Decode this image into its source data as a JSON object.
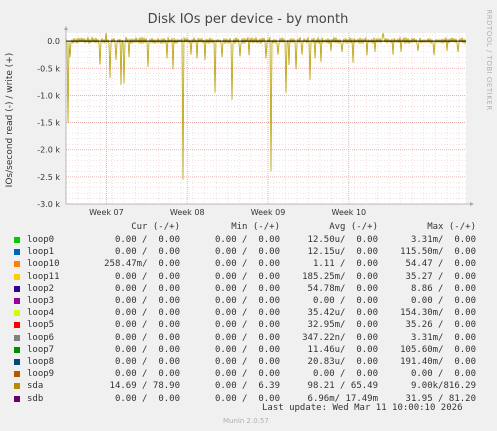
{
  "colors": {
    "background": "#f0f0f0",
    "plot_bg": "#ffffff",
    "grid_major": "#e6a0a0",
    "grid_minor": "#eec8c8",
    "zero_line": "#000000",
    "series_sda": "#b8a000"
  },
  "side_label": "RRDTOOL / TOBI OETIKER",
  "chart_data": {
    "type": "line",
    "title": "Disk IOs per device - by month",
    "ylabel": "IOs/second read (-) / write (+)",
    "ylim": [
      -3000,
      150
    ],
    "yticks": [
      {
        "value": 0,
        "label": "0.0"
      },
      {
        "value": -500,
        "label": "-0.5 k"
      },
      {
        "value": -1000,
        "label": "-1.0 k"
      },
      {
        "value": -1500,
        "label": "-1.5 k"
      },
      {
        "value": -2000,
        "label": "-2.0 k"
      },
      {
        "value": -2500,
        "label": "-2.5 k"
      },
      {
        "value": -3000,
        "label": "-3.0 k"
      }
    ],
    "xlim_weeks": [
      6.0,
      10.95
    ],
    "xticks": [
      {
        "value": 6.5,
        "label": "Week 07"
      },
      {
        "value": 7.5,
        "label": "Week 08"
      },
      {
        "value": 8.5,
        "label": "Week 09"
      },
      {
        "value": 9.5,
        "label": "Week 10"
      }
    ],
    "grid": true,
    "series": [
      {
        "name": "sda",
        "color": "#b8a000",
        "read_spikes": [
          {
            "x": 6.02,
            "y": -1500
          },
          {
            "x": 6.05,
            "y": -300
          },
          {
            "x": 6.42,
            "y": -430
          },
          {
            "x": 6.55,
            "y": -680
          },
          {
            "x": 6.62,
            "y": -350
          },
          {
            "x": 6.68,
            "y": -800
          },
          {
            "x": 6.72,
            "y": -780
          },
          {
            "x": 6.78,
            "y": -300
          },
          {
            "x": 7.02,
            "y": -470
          },
          {
            "x": 7.25,
            "y": -320
          },
          {
            "x": 7.33,
            "y": -520
          },
          {
            "x": 7.45,
            "y": -2550
          },
          {
            "x": 7.55,
            "y": -250
          },
          {
            "x": 7.62,
            "y": -320
          },
          {
            "x": 7.72,
            "y": -350
          },
          {
            "x": 7.85,
            "y": -950
          },
          {
            "x": 7.93,
            "y": -300
          },
          {
            "x": 8.05,
            "y": -1080
          },
          {
            "x": 8.15,
            "y": -280
          },
          {
            "x": 8.27,
            "y": -260
          },
          {
            "x": 8.48,
            "y": -320
          },
          {
            "x": 8.54,
            "y": -2400
          },
          {
            "x": 8.62,
            "y": -250
          },
          {
            "x": 8.72,
            "y": -950
          },
          {
            "x": 8.76,
            "y": -440
          },
          {
            "x": 8.85,
            "y": -520
          },
          {
            "x": 8.92,
            "y": -250
          },
          {
            "x": 9.02,
            "y": -720
          },
          {
            "x": 9.08,
            "y": -320
          },
          {
            "x": 9.15,
            "y": -380
          },
          {
            "x": 9.28,
            "y": -180
          },
          {
            "x": 9.42,
            "y": -200
          },
          {
            "x": 9.55,
            "y": -400
          },
          {
            "x": 9.72,
            "y": -260
          },
          {
            "x": 9.82,
            "y": -200
          },
          {
            "x": 10.05,
            "y": -250
          },
          {
            "x": 10.15,
            "y": -200
          },
          {
            "x": 10.35,
            "y": -180
          },
          {
            "x": 10.55,
            "y": -260
          },
          {
            "x": 10.72,
            "y": -180
          },
          {
            "x": 10.85,
            "y": -200
          }
        ],
        "write_spikes": [
          {
            "x": 6.5,
            "y": 210
          },
          {
            "x": 7.45,
            "y": 180
          },
          {
            "x": 8.54,
            "y": 200
          },
          {
            "x": 9.92,
            "y": 230
          },
          {
            "x": 10.55,
            "y": 120
          }
        ]
      }
    ]
  },
  "legend": {
    "headers": [
      "Cur (-/+)",
      "Min (-/+)",
      "Avg (-/+)",
      "Max (-/+)"
    ],
    "rows": [
      {
        "name": "loop0",
        "color": "#00cc00",
        "cur": "0.00 /  0.00",
        "min": "0.00 /  0.00",
        "avg": "12.50u/  0.00",
        "max": "3.31m/  0.00"
      },
      {
        "name": "loop1",
        "color": "#0066b3",
        "cur": "0.00 /  0.00",
        "min": "0.00 /  0.00",
        "avg": "12.15u/  0.00",
        "max": "115.50m/  0.00"
      },
      {
        "name": "loop10",
        "color": "#ff8000",
        "cur": "258.47m/  0.00",
        "min": "0.00 /  0.00",
        "avg": "1.11 /  0.00",
        "max": "54.47 /  0.00"
      },
      {
        "name": "loop11",
        "color": "#ffcc00",
        "cur": "0.00 /  0.00",
        "min": "0.00 /  0.00",
        "avg": "185.25m/  0.00",
        "max": "35.27 /  0.00"
      },
      {
        "name": "loop2",
        "color": "#330099",
        "cur": "0.00 /  0.00",
        "min": "0.00 /  0.00",
        "avg": "54.78m/  0.00",
        "max": "8.86 /  0.00"
      },
      {
        "name": "loop3",
        "color": "#990099",
        "cur": "0.00 /  0.00",
        "min": "0.00 /  0.00",
        "avg": "0.00 /  0.00",
        "max": "0.00 /  0.00"
      },
      {
        "name": "loop4",
        "color": "#ccff00",
        "cur": "0.00 /  0.00",
        "min": "0.00 /  0.00",
        "avg": "35.42u/  0.00",
        "max": "154.30m/  0.00"
      },
      {
        "name": "loop5",
        "color": "#ff0000",
        "cur": "0.00 /  0.00",
        "min": "0.00 /  0.00",
        "avg": "32.95m/  0.00",
        "max": "35.26 /  0.00"
      },
      {
        "name": "loop6",
        "color": "#808080",
        "cur": "0.00 /  0.00",
        "min": "0.00 /  0.00",
        "avg": "347.22n/  0.00",
        "max": "3.31m/  0.00"
      },
      {
        "name": "loop7",
        "color": "#008f00",
        "cur": "0.00 /  0.00",
        "min": "0.00 /  0.00",
        "avg": "11.46u/  0.00",
        "max": "105.60m/  0.00"
      },
      {
        "name": "loop8",
        "color": "#00487d",
        "cur": "0.00 /  0.00",
        "min": "0.00 /  0.00",
        "avg": "20.83u/  0.00",
        "max": "191.40m/  0.00"
      },
      {
        "name": "loop9",
        "color": "#b35a00",
        "cur": "0.00 /  0.00",
        "min": "0.00 /  0.00",
        "avg": "0.00 /  0.00",
        "max": "0.00 /  0.00"
      },
      {
        "name": "sda",
        "color": "#b38f00",
        "cur": "14.69 / 78.90",
        "min": "0.00 /  6.39",
        "avg": "98.21 / 65.49",
        "max": "9.00k/816.29"
      },
      {
        "name": "sdb",
        "color": "#6b006b",
        "cur": "0.00 /  0.00",
        "min": "0.00 /  0.00",
        "avg": "6.96m/ 17.49m",
        "max": "31.95 / 81.20"
      }
    ]
  },
  "footer": {
    "last_update": "Last update: Wed Mar 11 10:00:10 2026",
    "generator": "Munin 2.0.57"
  }
}
